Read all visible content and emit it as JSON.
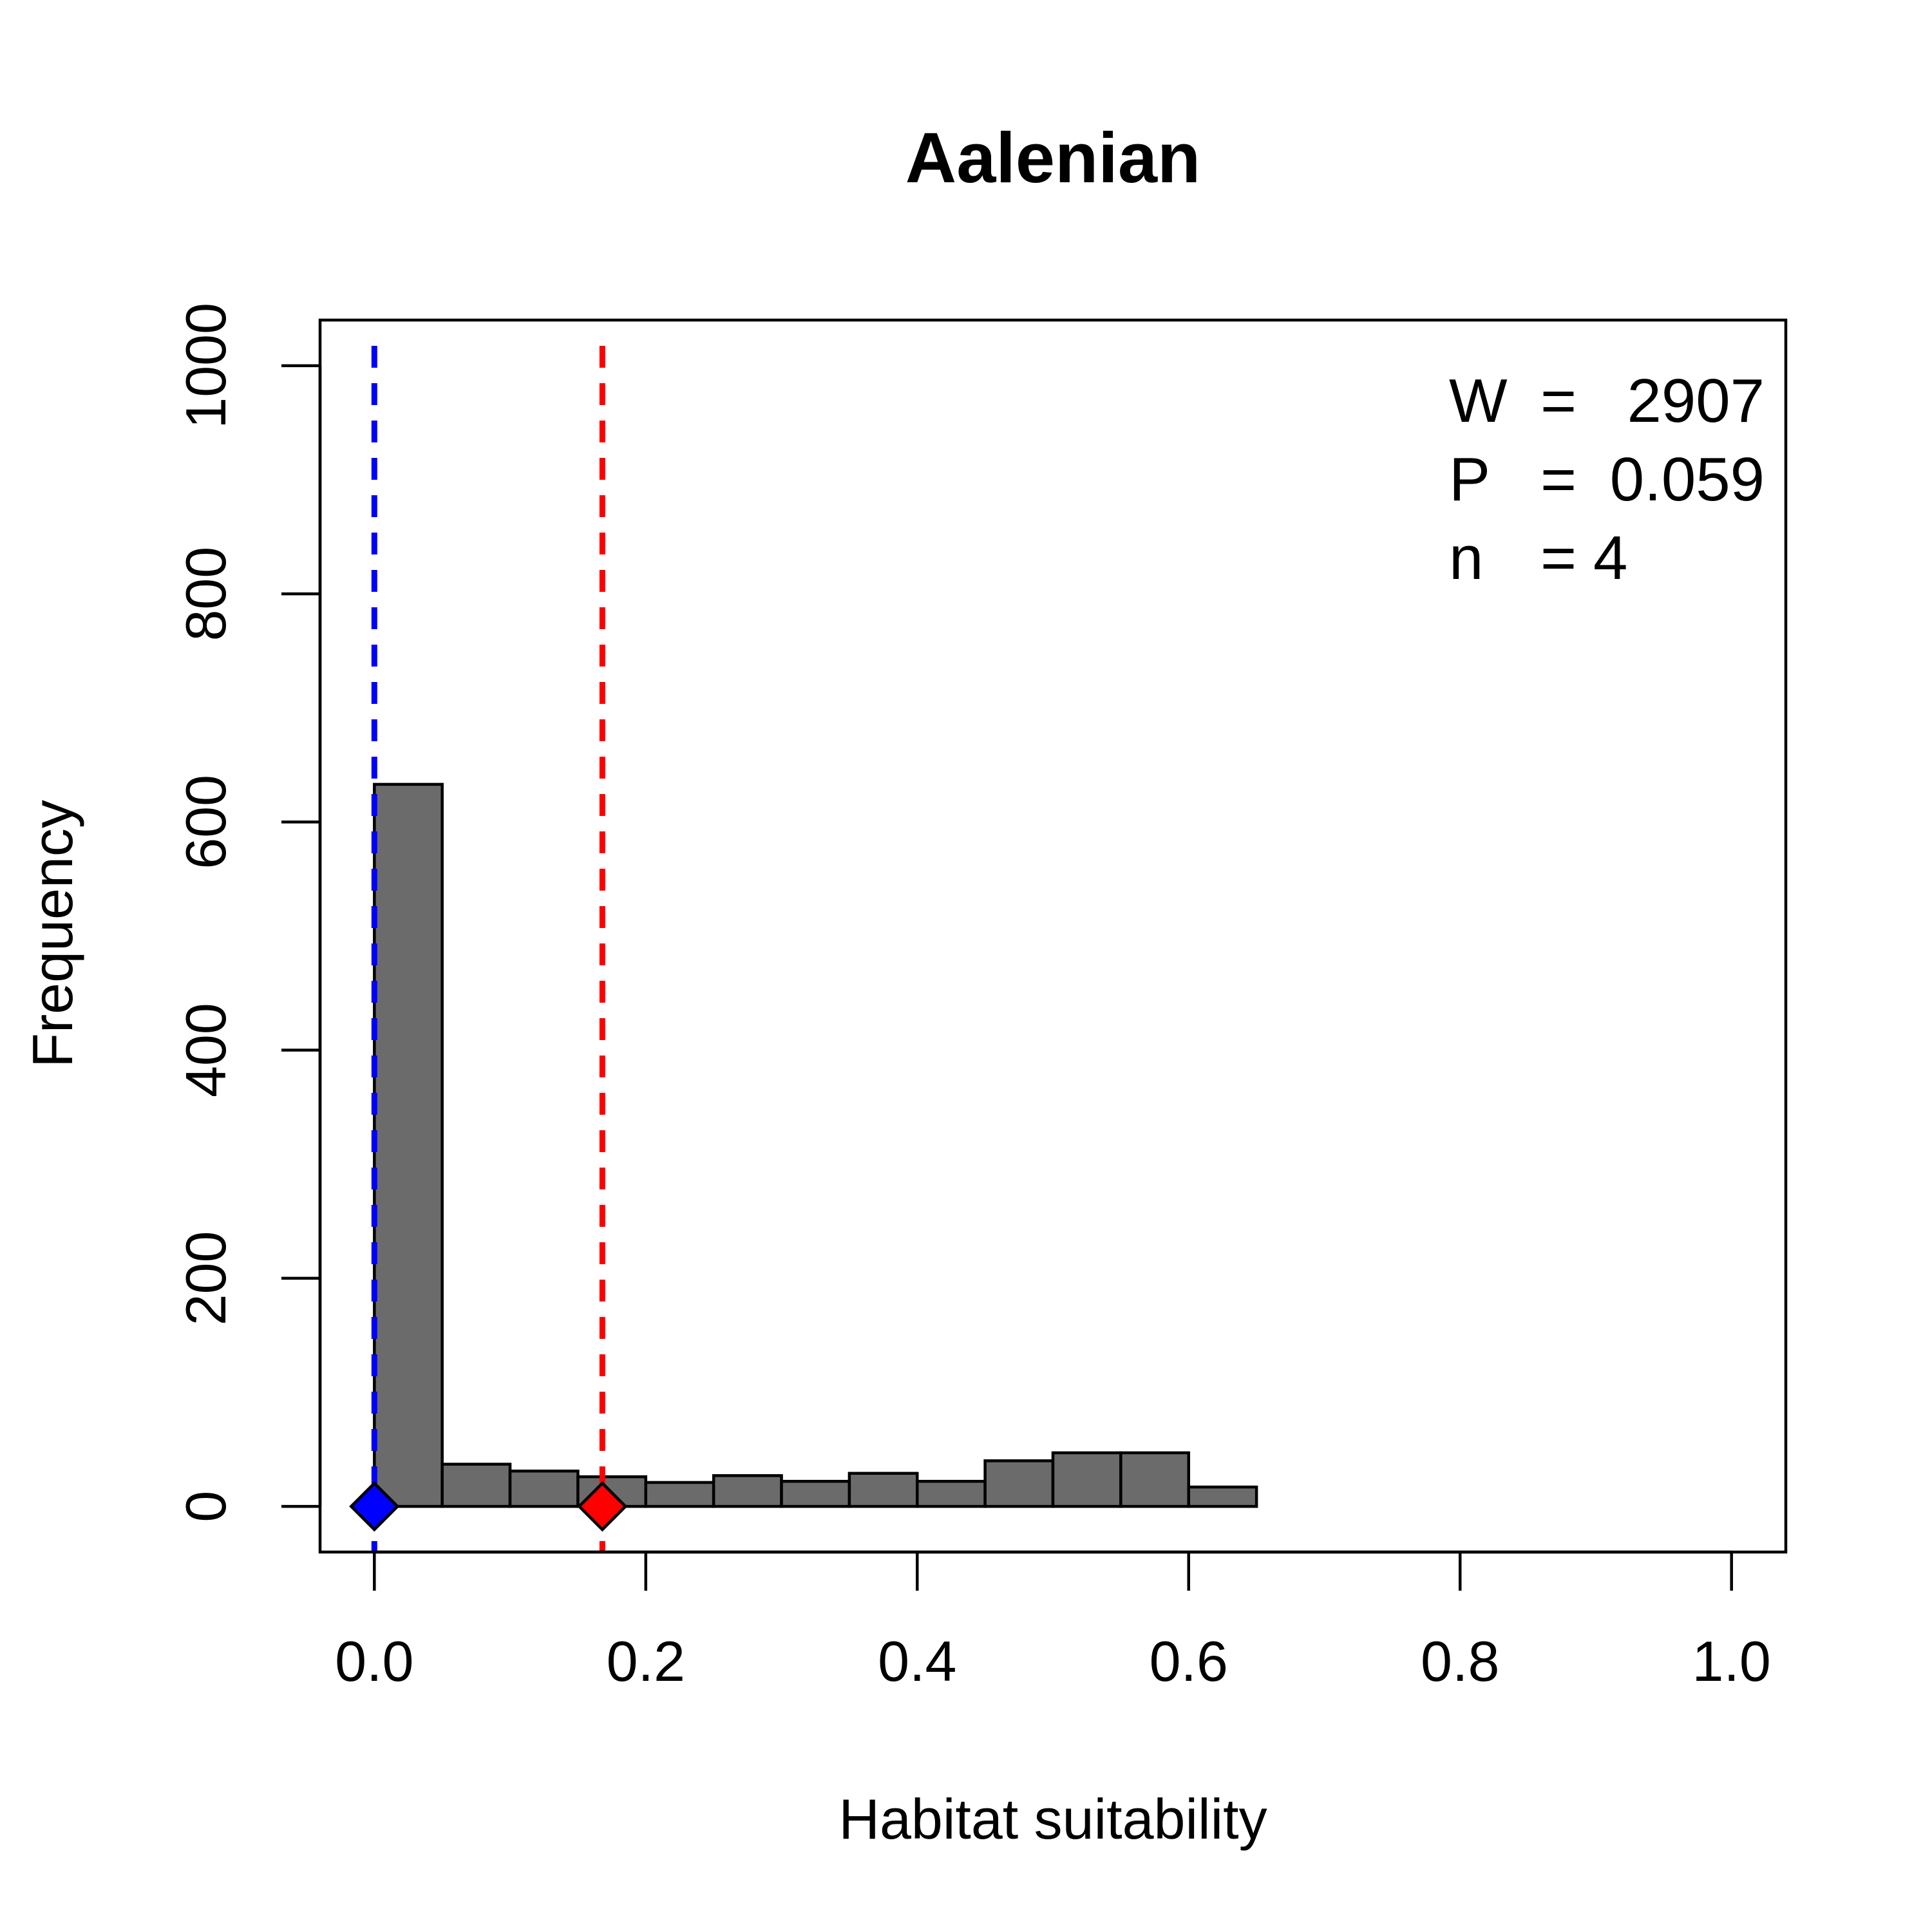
{
  "chart_data": {
    "type": "bar",
    "title": "Aalenian",
    "xlabel": "Habitat suitability",
    "ylabel": "Frequency",
    "xlim": [
      -0.04,
      1.04
    ],
    "ylim": [
      -40,
      1040
    ],
    "x_ticks": [
      0.0,
      0.2,
      0.4,
      0.6,
      0.8,
      1.0
    ],
    "x_tick_labels": [
      "0.0",
      "0.2",
      "0.4",
      "0.6",
      "0.8",
      "1.0"
    ],
    "y_ticks": [
      0,
      200,
      400,
      600,
      800,
      1000
    ],
    "y_tick_labels": [
      "0",
      "200",
      "400",
      "600",
      "800",
      "1000"
    ],
    "bin_width": 0.05,
    "bins": [
      {
        "x0": 0.0,
        "x1": 0.05,
        "count": 633
      },
      {
        "x0": 0.05,
        "x1": 0.1,
        "count": 37
      },
      {
        "x0": 0.1,
        "x1": 0.15,
        "count": 31
      },
      {
        "x0": 0.15,
        "x1": 0.2,
        "count": 26
      },
      {
        "x0": 0.2,
        "x1": 0.25,
        "count": 21
      },
      {
        "x0": 0.25,
        "x1": 0.3,
        "count": 27
      },
      {
        "x0": 0.3,
        "x1": 0.35,
        "count": 22
      },
      {
        "x0": 0.35,
        "x1": 0.4,
        "count": 29
      },
      {
        "x0": 0.4,
        "x1": 0.45,
        "count": 22
      },
      {
        "x0": 0.45,
        "x1": 0.5,
        "count": 40
      },
      {
        "x0": 0.5,
        "x1": 0.55,
        "count": 47
      },
      {
        "x0": 0.55,
        "x1": 0.6,
        "count": 47
      },
      {
        "x0": 0.6,
        "x1": 0.65,
        "count": 17
      }
    ],
    "reference_lines": [
      {
        "name": "blue",
        "x": 0.0,
        "color": "#0000FF",
        "style": "dashed"
      },
      {
        "name": "red",
        "x": 0.168,
        "color": "#FF0000",
        "style": "dashed"
      }
    ],
    "markers": [
      {
        "name": "blue",
        "x": 0.0,
        "y": 0,
        "shape": "diamond",
        "color": "#0000FF"
      },
      {
        "name": "red",
        "x": 0.168,
        "y": 0,
        "shape": "diamond",
        "color": "#FF0000"
      }
    ],
    "bar_color": "#6B6B6B",
    "stats": [
      {
        "label": "W",
        "eq": "=",
        "value": "2907"
      },
      {
        "label": "P",
        "eq": "=",
        "value": "0.059"
      },
      {
        "label": "n",
        "eq": "=",
        "value": "4"
      }
    ],
    "stats_position": "top-right",
    "grid": false
  }
}
